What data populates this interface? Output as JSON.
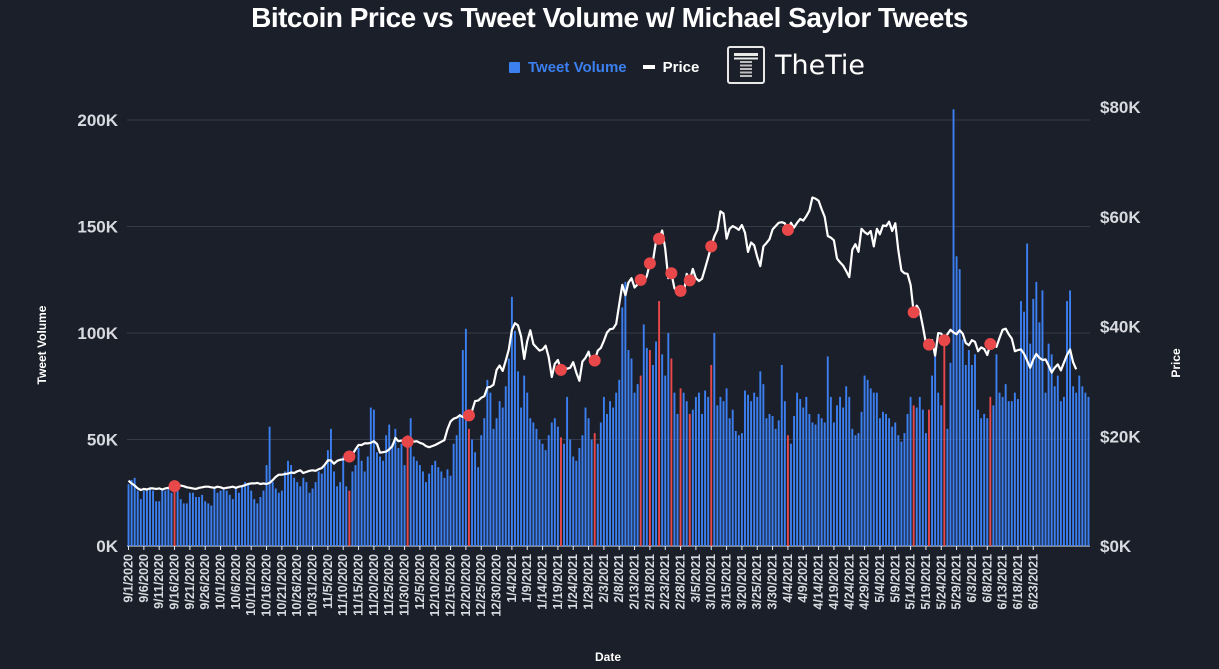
{
  "chart_data": {
    "type": "bar",
    "title": "Bitcoin Price vs Tweet Volume w/ Michael Saylor Tweets",
    "legend": {
      "position": "top-center",
      "entries": [
        {
          "name": "Tweet Volume",
          "marker": "square",
          "color": "#3b7ff0"
        },
        {
          "name": "Price",
          "marker": "line",
          "color": "#ffffff"
        }
      ]
    },
    "brand": "TheTie",
    "xlabel": "Date",
    "ylabel": "Tweet Volume",
    "ylabel_right": "Price",
    "ylim": [
      0,
      200000
    ],
    "ylim_right": [
      0,
      80000
    ],
    "yticks": [
      "0K",
      "50K",
      "100K",
      "150K",
      "200K"
    ],
    "yticks_right": [
      "$0K",
      "$20K",
      "$40K",
      "$60K",
      "$80K"
    ],
    "grid": "horizontal",
    "start_date": "9/1/2020",
    "xticks": [
      "9/1/2020",
      "9/6/2020",
      "9/11/2020",
      "9/16/2020",
      "9/21/2020",
      "9/26/2020",
      "10/1/2020",
      "10/6/2020",
      "10/11/2020",
      "10/16/2020",
      "10/21/2020",
      "10/26/2020",
      "10/31/2020",
      "11/5/2020",
      "11/10/2020",
      "11/15/2020",
      "11/20/2020",
      "11/25/2020",
      "11/30/2020",
      "12/5/2020",
      "12/10/2020",
      "12/15/2020",
      "12/20/2020",
      "12/25/2020",
      "12/30/2020",
      "1/4/2021",
      "1/9/2021",
      "1/14/2021",
      "1/19/2021",
      "1/24/2021",
      "1/29/2021",
      "2/3/2021",
      "2/8/2021",
      "2/13/2021",
      "2/18/2021",
      "2/23/2021",
      "2/28/2021",
      "3/5/2021",
      "3/10/2021",
      "3/15/2021",
      "3/20/2021",
      "3/25/2021",
      "3/30/2021",
      "4/4/2021",
      "4/9/2021",
      "4/14/2021",
      "4/19/2021",
      "4/24/2021",
      "4/29/2021",
      "5/4/2021",
      "5/9/2021",
      "5/14/2021",
      "5/19/2021",
      "5/24/2021",
      "5/29/2021",
      "6/3/2021",
      "6/8/2021",
      "6/13/2021",
      "6/18/2021",
      "6/23/2021"
    ],
    "colors": {
      "volume": "#3b7ff0",
      "saylor": "#e8484a",
      "price": "#ffffff",
      "grid": "#353b48",
      "axis_text": "#d8dae0"
    },
    "series": [
      {
        "name": "Tweet Volume",
        "unit": "K tweets/day",
        "values": [
          29,
          31,
          32,
          26,
          22,
          26,
          27,
          27,
          26,
          21,
          21,
          27,
          26,
          27,
          25,
          28,
          26,
          22,
          20,
          20,
          25,
          25,
          23,
          23,
          24,
          21,
          20,
          19,
          27,
          25,
          26,
          27,
          26,
          24,
          22,
          27,
          25,
          28,
          30,
          29,
          26,
          22,
          20,
          23,
          26,
          38,
          56,
          30,
          27,
          25,
          26,
          35,
          40,
          38,
          32,
          30,
          28,
          32,
          30,
          25,
          27,
          30,
          35,
          34,
          38,
          45,
          55,
          35,
          28,
          30,
          42,
          28,
          26,
          35,
          38,
          46,
          40,
          35,
          42,
          65,
          64,
          44,
          42,
          40,
          52,
          57,
          48,
          55,
          46,
          48,
          38,
          52,
          60,
          42,
          40,
          38,
          35,
          30,
          34,
          38,
          40,
          37,
          35,
          32,
          36,
          33,
          48,
          52,
          62,
          92,
          102,
          55,
          50,
          44,
          37,
          52,
          60,
          78,
          72,
          55,
          60,
          68,
          65,
          75,
          88,
          117,
          101,
          82,
          65,
          80,
          72,
          60,
          58,
          55,
          50,
          48,
          45,
          52,
          58,
          60,
          56,
          51,
          48,
          70,
          50,
          42,
          40,
          46,
          52,
          65,
          60,
          50,
          53,
          48,
          58,
          70,
          62,
          68,
          65,
          72,
          78,
          112,
          124,
          92,
          88,
          72,
          76,
          80,
          104,
          93,
          92,
          85,
          96,
          115,
          90,
          80,
          100,
          88,
          72,
          62,
          74,
          72,
          68,
          62,
          64,
          70,
          72,
          62,
          73,
          70,
          85,
          100,
          66,
          70,
          68,
          74,
          60,
          64,
          54,
          52,
          53,
          73,
          71,
          68,
          72,
          70,
          82,
          76,
          60,
          62,
          61,
          55,
          59,
          85,
          68,
          52,
          48,
          61,
          72,
          69,
          65,
          70,
          62,
          58,
          57,
          62,
          60,
          58,
          89,
          70,
          58,
          66,
          70,
          65,
          75,
          70,
          55,
          52,
          53,
          63,
          80,
          78,
          74,
          72,
          72,
          60,
          63,
          62,
          60,
          56,
          58,
          52,
          49,
          53,
          62,
          70,
          66,
          65,
          70,
          64,
          53,
          64,
          80,
          90,
          72,
          66,
          95,
          55,
          86,
          205,
          136,
          130,
          97,
          85,
          92,
          85,
          90,
          64,
          60,
          62,
          60,
          70,
          66,
          90,
          72,
          70,
          76,
          68,
          68,
          72,
          69,
          115,
          110,
          142,
          95,
          116,
          124,
          105,
          120,
          72,
          95,
          90,
          75,
          80,
          68,
          70,
          115,
          120,
          75,
          72,
          80,
          75,
          72,
          70
        ],
        "saylor_days": [
          15,
          72,
          91,
          111,
          141,
          152,
          167,
          170,
          173,
          177,
          180,
          183,
          190,
          215,
          256,
          261,
          266,
          281
        ]
      },
      {
        "name": "Price",
        "unit": "USD thousands",
        "values": [
          11.9,
          11.4,
          11.0,
          10.5,
          10.2,
          10.4,
          10.3,
          10.5,
          10.5,
          10.4,
          10.5,
          10.3,
          10.5,
          10.6,
          10.8,
          10.9,
          10.9,
          11.0,
          10.9,
          10.7,
          10.6,
          10.5,
          10.4,
          10.6,
          10.7,
          10.8,
          10.8,
          10.7,
          10.6,
          10.8,
          10.7,
          10.5,
          10.6,
          10.7,
          10.8,
          10.6,
          10.8,
          10.9,
          11.1,
          11.3,
          11.4,
          11.4,
          11.5,
          11.3,
          11.4,
          11.3,
          11.5,
          12.0,
          12.6,
          13.0,
          13.0,
          13.1,
          13.2,
          13.4,
          13.3,
          13.6,
          13.8,
          13.3,
          13.5,
          13.7,
          13.8,
          13.7,
          14.0,
          14.2,
          14.8,
          15.6,
          15.6,
          15.0,
          15.5,
          15.7,
          15.8,
          16.0,
          16.3,
          16.7,
          17.6,
          18.4,
          18.4,
          18.7,
          18.7,
          18.8,
          19.1,
          18.6,
          17.0,
          17.1,
          17.2,
          17.6,
          18.2,
          19.7,
          19.1,
          19.2,
          19.2,
          19.0,
          19.4,
          19.0,
          19.1,
          18.8,
          18.6,
          18.2,
          18.0,
          18.2,
          18.4,
          18.7,
          19.0,
          19.3,
          21.3,
          22.7,
          23.2,
          23.4,
          23.8,
          23.5,
          23.7,
          23.8,
          24.6,
          26.4,
          26.5,
          27.0,
          27.3,
          28.9,
          29.0,
          29.4,
          32.1,
          32.9,
          31.9,
          33.8,
          35.8,
          39.4,
          40.6,
          40.2,
          38.2,
          34.1,
          37.3,
          39.3,
          36.8,
          36.2,
          35.6,
          35.8,
          36.5,
          34.4,
          30.8,
          33.2,
          33.9,
          32.1,
          32.6,
          32.3,
          32.5,
          33.5,
          31.6,
          30.1,
          33.6,
          34.3,
          35.4,
          33.2,
          33.8,
          35.6,
          36.1,
          37.4,
          38.9,
          39.5,
          39.6,
          40.5,
          44.0,
          47.6,
          45.7,
          48.0,
          48.8,
          47.1,
          47.7,
          48.5,
          47.9,
          49.2,
          51.5,
          52.0,
          55.5,
          56.0,
          57.5,
          54.2,
          48.8,
          49.7,
          47.0,
          46.3,
          46.5,
          45.8,
          49.6,
          48.4,
          50.5,
          48.8,
          48.3,
          48.7,
          50.6,
          52.6,
          54.6,
          56.4,
          57.6,
          61.0,
          60.6,
          56.0,
          57.8,
          58.3,
          58.0,
          57.6,
          58.5,
          57.1,
          53.6,
          55.3,
          54.8,
          52.7,
          51.0,
          54.6,
          55.2,
          55.9,
          57.7,
          58.3,
          58.9,
          59.0,
          58.8,
          57.6,
          58.9,
          58.0,
          58.9,
          59.6,
          59.3,
          60.1,
          61.1,
          63.5,
          63.3,
          62.9,
          61.4,
          60.0,
          56.5,
          56.2,
          55.7,
          52.4,
          51.7,
          51.1,
          50.1,
          49.0,
          54.0,
          55.0,
          53.6,
          57.8,
          57.2,
          56.8,
          57.4,
          54.6,
          57.8,
          56.8,
          58.4,
          58.3,
          59.1,
          57.4,
          58.8,
          53.9,
          50.2,
          49.7,
          49.6,
          47.6,
          42.6,
          43.8,
          42.8,
          40.0,
          37.0,
          36.7,
          37.5,
          34.7,
          38.8,
          38.7,
          37.5,
          38.6,
          39.4,
          38.9,
          38.6,
          39.3,
          38.7,
          37.0,
          36.6,
          37.5,
          37.2,
          35.5,
          36.2,
          35.9,
          34.8,
          36.8,
          36.8,
          36.3,
          37.9,
          39.4,
          39.6,
          38.6,
          37.8,
          35.5,
          35.7,
          35.8,
          35.0,
          33.8,
          32.5,
          34.0,
          35.0,
          34.3,
          33.9,
          34.0,
          32.9,
          31.6,
          32.5,
          33.1,
          32.0,
          33.4,
          34.8,
          35.8,
          33.5,
          32.2
        ]
      }
    ]
  }
}
